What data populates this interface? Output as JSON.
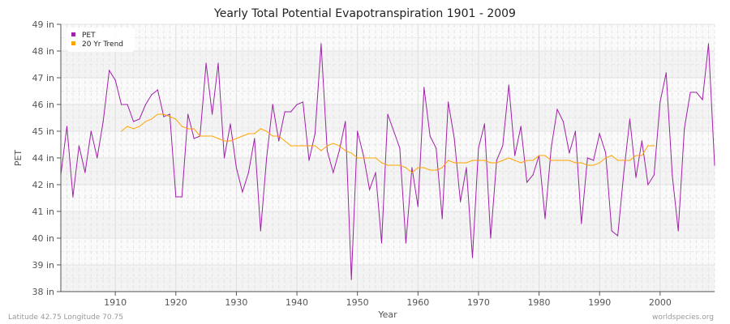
{
  "chart_data": {
    "type": "line",
    "title": "Yearly Total Potential Evapotranspiration 1901 - 2009",
    "xlabel": "Year",
    "ylabel": "PET",
    "xlim": [
      1901,
      2009
    ],
    "ylim": [
      38,
      49
    ],
    "x_ticks": [
      "1910",
      "1920",
      "1930",
      "1940",
      "1950",
      "1960",
      "1970",
      "1980",
      "1990",
      "2000"
    ],
    "y_ticks": [
      "49 in",
      "48 in",
      "47 in",
      "46 in",
      "45 in",
      "44 in",
      "42 in",
      "41 in",
      "40 in",
      "39 in",
      "38 in"
    ],
    "grid": true,
    "legend_position": "top-left",
    "series": [
      {
        "name": "PET",
        "color": "#a020a8",
        "x_start": 1901,
        "values": [
          42.8,
          44.8,
          41.9,
          44.0,
          42.9,
          44.6,
          43.5,
          45.0,
          47.1,
          46.7,
          45.7,
          45.7,
          45.0,
          45.1,
          45.7,
          46.1,
          46.3,
          45.2,
          45.3,
          41.9,
          41.9,
          45.3,
          44.3,
          44.4,
          47.4,
          45.3,
          47.4,
          43.5,
          44.9,
          43.1,
          42.1,
          42.9,
          44.3,
          40.5,
          43.5,
          45.7,
          44.2,
          45.4,
          45.4,
          45.7,
          45.8,
          43.4,
          44.5,
          48.2,
          43.8,
          42.9,
          43.8,
          45.0,
          38.5,
          44.6,
          43.6,
          42.2,
          42.9,
          40.0,
          45.3,
          44.6,
          43.9,
          40.0,
          43.1,
          41.5,
          46.4,
          44.4,
          43.9,
          41.0,
          45.8,
          44.3,
          41.7,
          43.1,
          39.4,
          43.9,
          44.9,
          40.2,
          43.4,
          44.0,
          46.5,
          43.6,
          44.8,
          42.5,
          42.8,
          43.6,
          41.0,
          43.9,
          45.5,
          45.0,
          43.7,
          44.6,
          40.8,
          43.5,
          43.4,
          44.5,
          43.7,
          40.5,
          40.3,
          42.9,
          45.1,
          42.7,
          44.2,
          42.4,
          42.8,
          45.8,
          47.0,
          42.8,
          40.5,
          44.7,
          46.2,
          46.2,
          45.9,
          48.2,
          43.2
        ]
      },
      {
        "name": "20 Yr Trend",
        "color": "#ffa500",
        "x_start": 1911,
        "values": [
          44.6,
          44.8,
          44.7,
          44.8,
          45.0,
          45.1,
          45.3,
          45.3,
          45.2,
          45.1,
          44.8,
          44.7,
          44.7,
          44.4,
          44.4,
          44.4,
          44.3,
          44.2,
          44.2,
          44.3,
          44.4,
          44.5,
          44.5,
          44.7,
          44.6,
          44.4,
          44.4,
          44.2,
          44.0,
          44.0,
          44.0,
          44.0,
          44.0,
          43.8,
          44.0,
          44.1,
          44.0,
          43.8,
          43.7,
          43.5,
          43.5,
          43.5,
          43.5,
          43.3,
          43.2,
          43.2,
          43.2,
          43.1,
          42.9,
          43.1,
          43.1,
          43.0,
          43.0,
          43.1,
          43.4,
          43.3,
          43.3,
          43.3,
          43.4,
          43.4,
          43.4,
          43.3,
          43.3,
          43.4,
          43.5,
          43.4,
          43.3,
          43.4,
          43.4,
          43.6,
          43.6,
          43.4,
          43.4,
          43.4,
          43.4,
          43.3,
          43.3,
          43.2,
          43.2,
          43.3,
          43.5,
          43.6,
          43.4,
          43.4,
          43.4,
          43.6,
          43.6,
          44.0,
          44.0
        ]
      }
    ]
  },
  "footer": {
    "location": "Latitude 42.75 Longitude 70.75",
    "source": "worldspecies.org"
  }
}
